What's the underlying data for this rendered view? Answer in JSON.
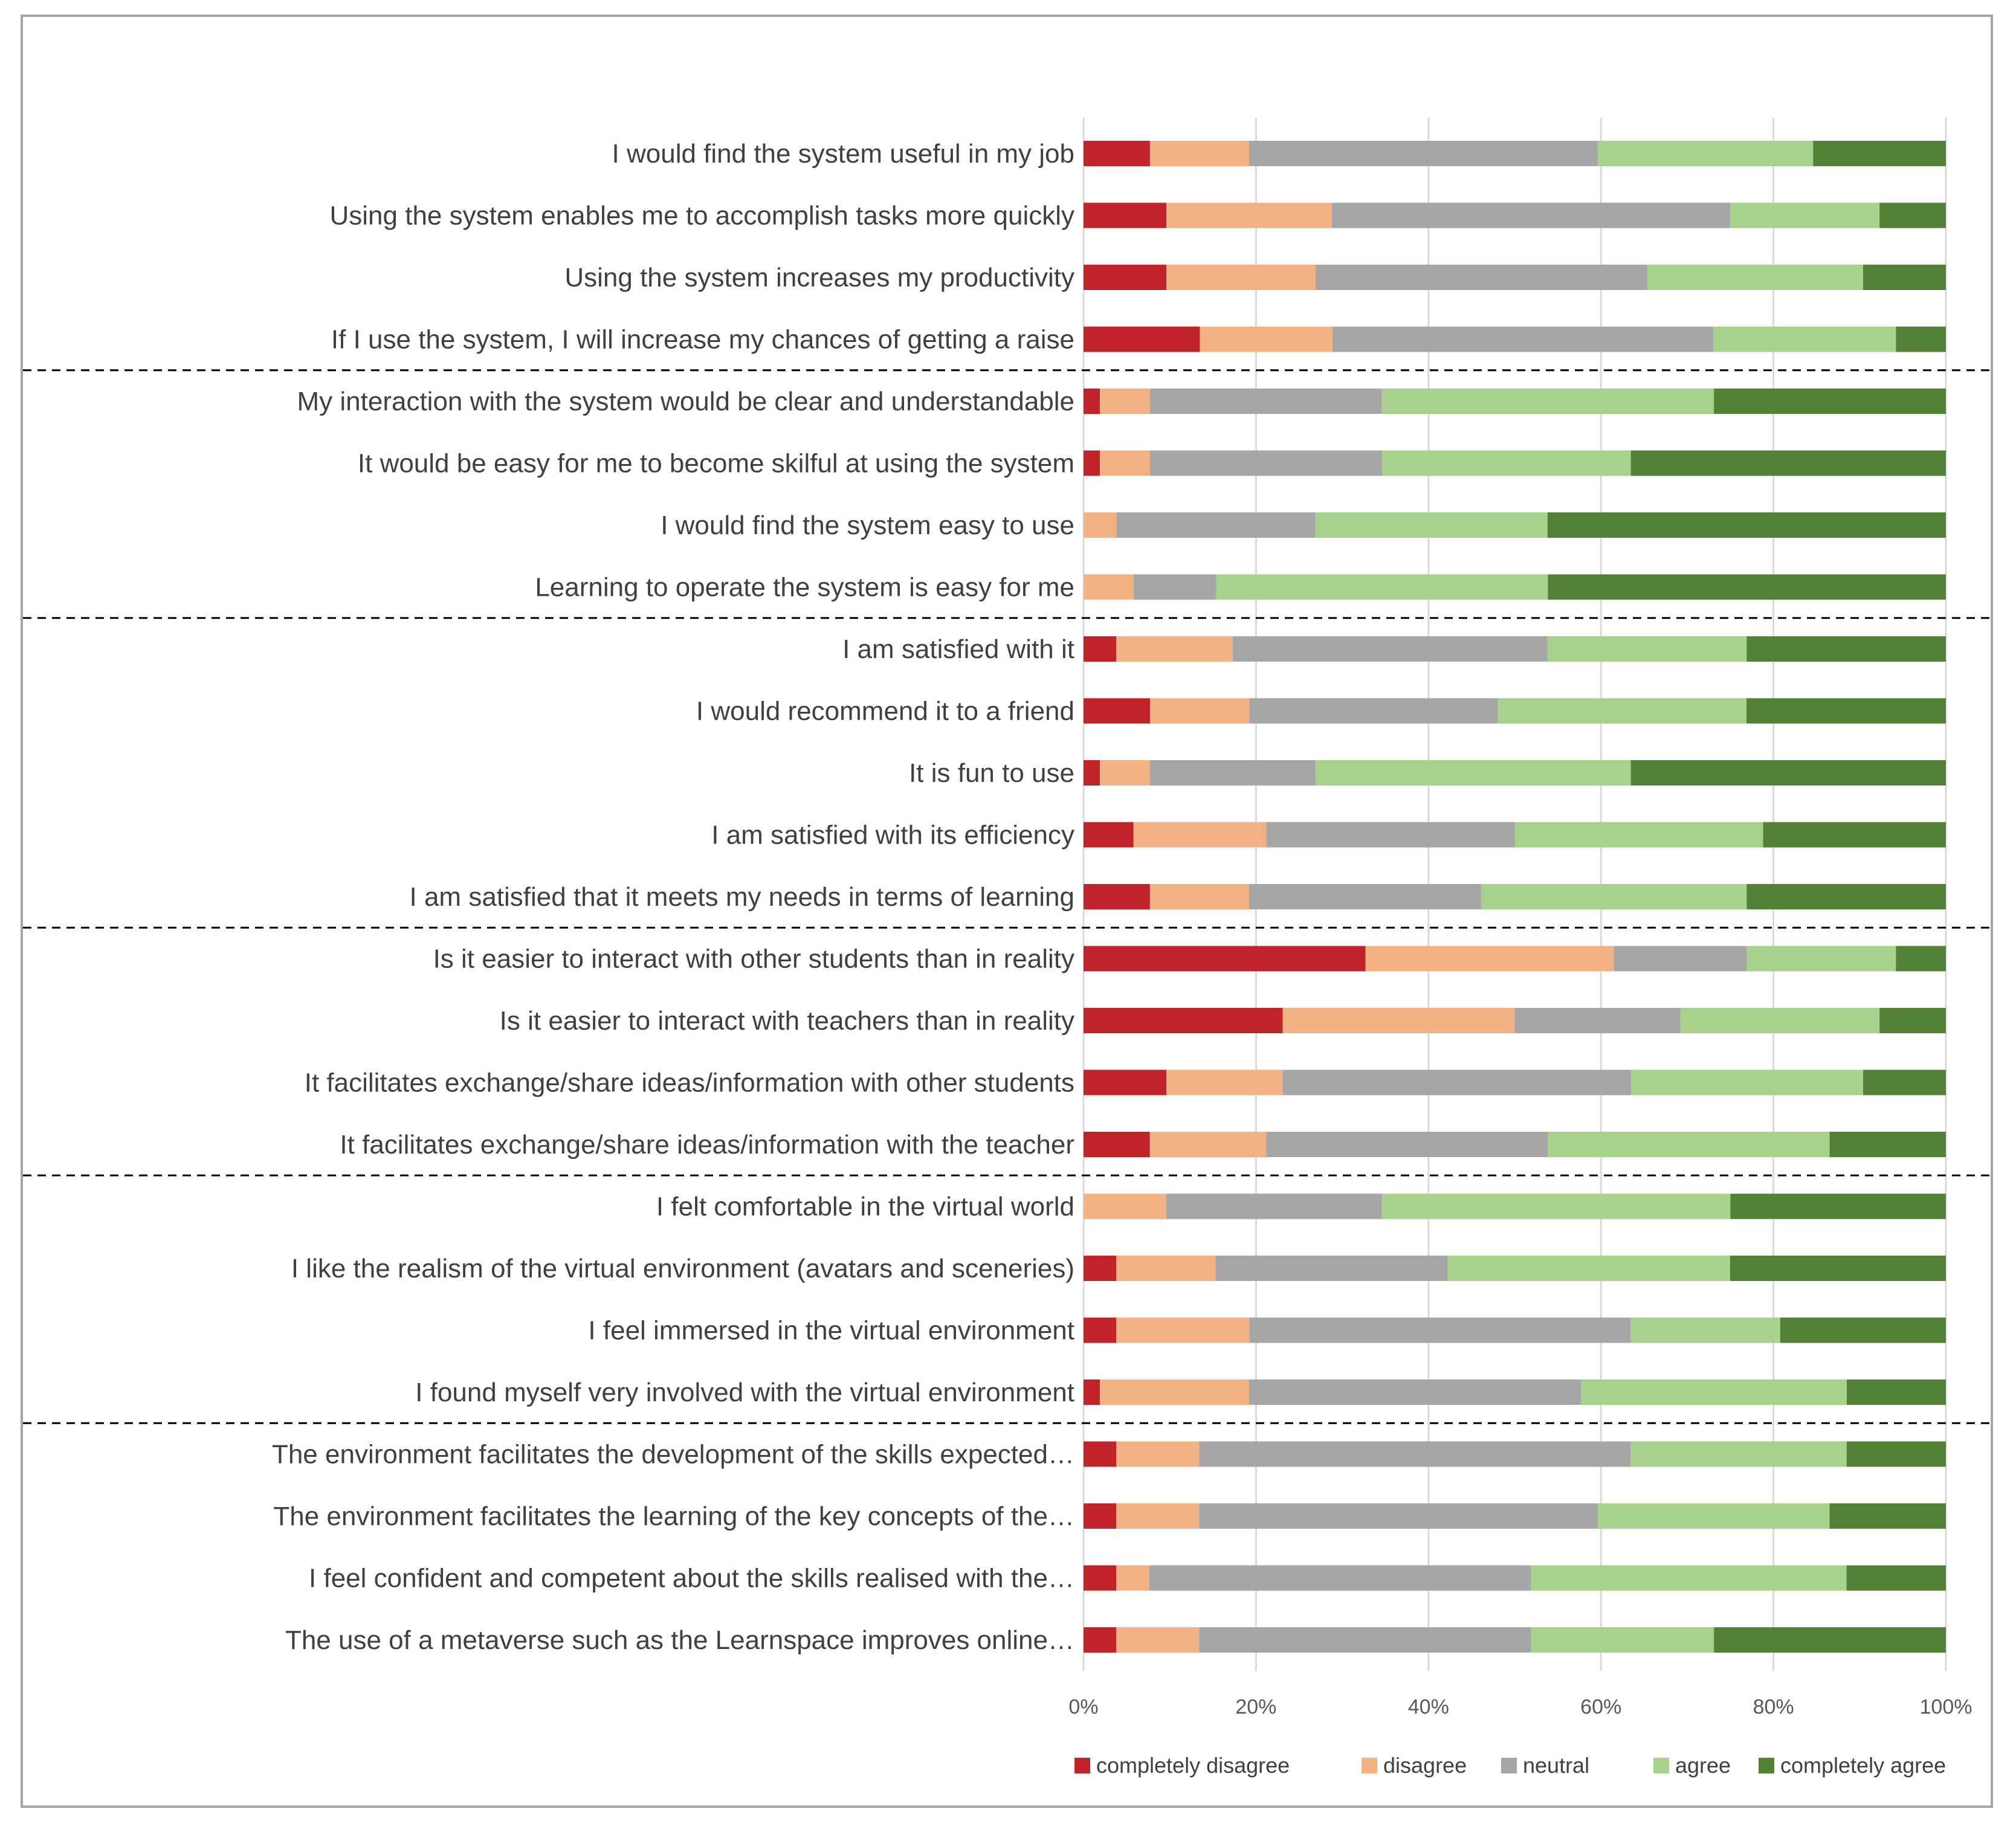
{
  "chart_data": {
    "type": "bar",
    "orientation": "horizontal",
    "stacked": "percent",
    "title": "",
    "xlabel": "",
    "ylabel": "",
    "xlim": [
      0,
      100
    ],
    "grid": true,
    "legend_position": "bottom",
    "x_ticks": [
      "0%",
      "20%",
      "40%",
      "60%",
      "80%",
      "100%"
    ],
    "group_separator_after": [
      3,
      7,
      12,
      16,
      20
    ],
    "colors": [
      "#c0242a",
      "#f4b183",
      "#a6a6a6",
      "#a9d18e",
      "#538135"
    ],
    "categories": [
      "I would find the system useful in my job",
      "Using the system enables me to accomplish tasks more quickly",
      "Using the system increases my productivity",
      "If I use the system, I will increase my chances of getting a raise",
      "My interaction with the system would be clear and understandable",
      "It would be easy for me to become skilful at using the system",
      "I would find the system easy to use",
      "Learning to operate the system is easy for me",
      "I am satisfied with it",
      "I would recommend it to a friend",
      "It is fun to use",
      "I am satisfied with its efficiency",
      "I am satisfied that it meets my needs in terms of learning",
      "Is it easier to interact with other students than in reality",
      "Is it easier to interact with teachers than in reality",
      "It facilitates exchange/share ideas/information with other students",
      "It facilitates exchange/share ideas/information with the teacher",
      "I felt comfortable in the virtual world",
      "I like the realism of the virtual environment (avatars and sceneries)",
      "I feel immersed in the virtual environment",
      "I found myself very involved with the virtual environment",
      "The environment facilitates the development of the skills expected…",
      "The environment facilitates the learning of the key concepts of the…",
      "I feel confident and competent about the skills realised with the…",
      "The use of a metaverse such as the Learnspace improves online…"
    ],
    "series": [
      {
        "name": "completely disagree",
        "values": [
          7.7,
          9.6,
          9.6,
          13.5,
          1.9,
          1.9,
          0,
          0,
          3.8,
          7.7,
          1.9,
          5.8,
          7.7,
          32.7,
          23.1,
          9.6,
          7.7,
          0,
          3.8,
          3.8,
          1.9,
          3.8,
          3.8,
          3.8,
          3.8
        ]
      },
      {
        "name": "disagree",
        "values": [
          11.5,
          19.2,
          17.3,
          15.4,
          5.8,
          5.8,
          3.8,
          5.8,
          13.5,
          11.5,
          5.8,
          15.4,
          11.5,
          28.8,
          26.9,
          13.5,
          13.5,
          9.6,
          11.5,
          15.4,
          17.3,
          9.6,
          9.6,
          3.8,
          9.6
        ]
      },
      {
        "name": "neutral",
        "values": [
          40.4,
          46.2,
          38.5,
          44.2,
          26.9,
          26.9,
          23.1,
          9.6,
          36.5,
          28.8,
          19.2,
          28.8,
          26.9,
          15.4,
          19.2,
          40.4,
          32.7,
          25.0,
          26.9,
          44.2,
          38.5,
          50.0,
          46.2,
          44.2,
          38.5
        ]
      },
      {
        "name": "agree",
        "values": [
          25.0,
          17.3,
          25.0,
          21.2,
          38.5,
          28.8,
          26.9,
          38.5,
          23.1,
          28.8,
          36.5,
          28.8,
          30.8,
          17.3,
          23.1,
          26.9,
          32.7,
          40.4,
          32.7,
          17.3,
          30.8,
          25.0,
          26.9,
          36.5,
          21.2
        ]
      },
      {
        "name": "completely agree",
        "values": [
          15.4,
          7.7,
          9.6,
          5.8,
          26.9,
          36.5,
          46.2,
          46.2,
          23.1,
          23.1,
          36.5,
          21.2,
          23.1,
          5.8,
          7.7,
          9.6,
          13.5,
          25.0,
          25.0,
          19.2,
          11.5,
          11.5,
          13.5,
          11.5,
          26.9
        ]
      }
    ]
  }
}
